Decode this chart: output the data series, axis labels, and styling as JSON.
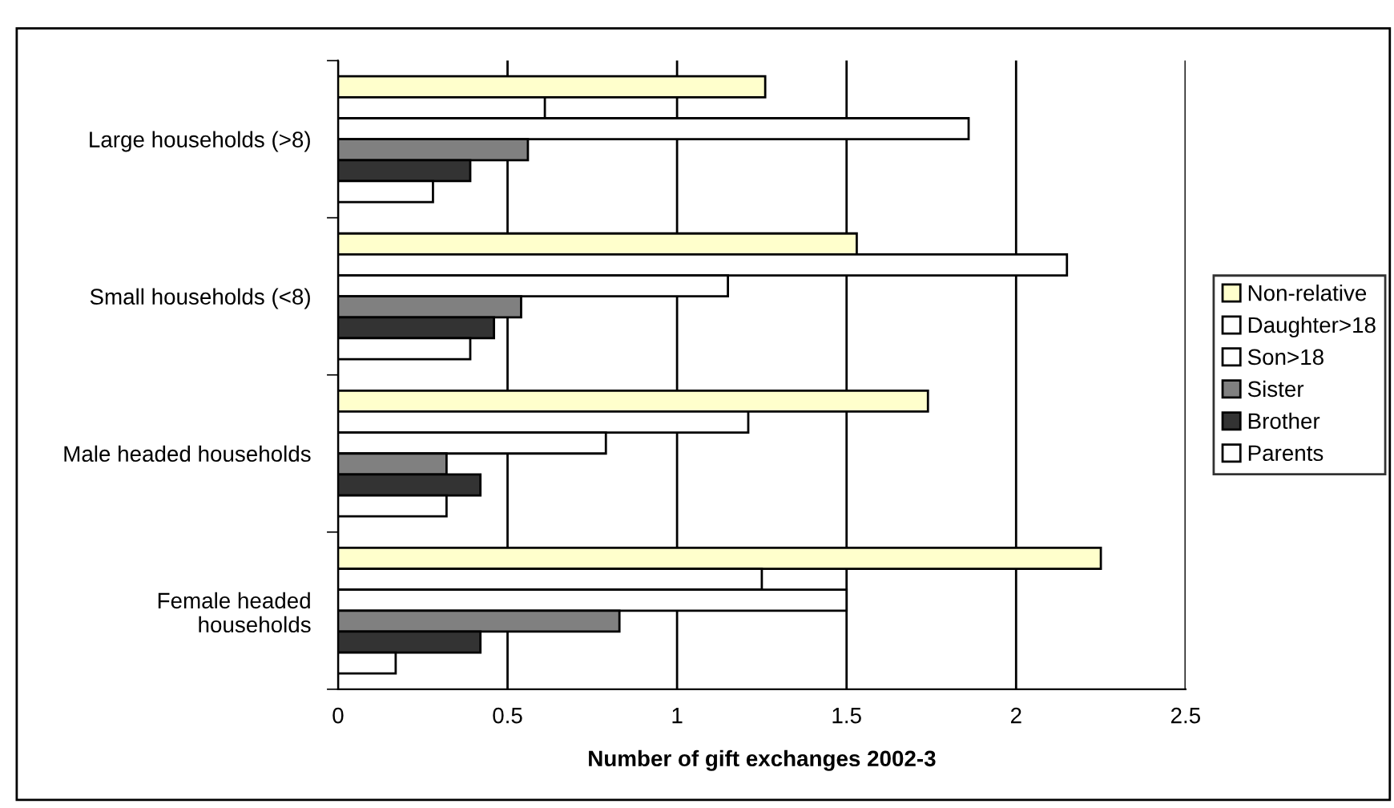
{
  "chart_data": {
    "type": "bar",
    "orientation": "horizontal",
    "xlabel": "Number of gift exchanges 2002-3",
    "categories": [
      "Large households (>8)",
      "Small households (<8)",
      "Male headed households",
      "Female headed\nhouseholds"
    ],
    "series": [
      {
        "name": "Non-relative",
        "color": "#ffffcc",
        "values": [
          1.26,
          1.53,
          1.74,
          2.25
        ]
      },
      {
        "name": "Daughter>18",
        "color": "#ffffff",
        "values": [
          0.61,
          2.15,
          1.21,
          1.25
        ]
      },
      {
        "name": "Son>18",
        "color": "#ffffff",
        "values": [
          1.86,
          1.15,
          0.79,
          1.5
        ]
      },
      {
        "name": "Sister",
        "color": "#808080",
        "values": [
          0.56,
          0.54,
          0.32,
          0.83
        ]
      },
      {
        "name": "Brother",
        "color": "#333333",
        "values": [
          0.39,
          0.46,
          0.42,
          0.42
        ]
      },
      {
        "name": "Parents",
        "color": "#ffffff",
        "values": [
          0.28,
          0.39,
          0.32,
          0.17
        ]
      }
    ],
    "xlim": [
      0,
      2.5
    ],
    "xticks": [
      0,
      0.5,
      1,
      1.5,
      2,
      2.5
    ],
    "grid": "x",
    "legend": "right"
  }
}
